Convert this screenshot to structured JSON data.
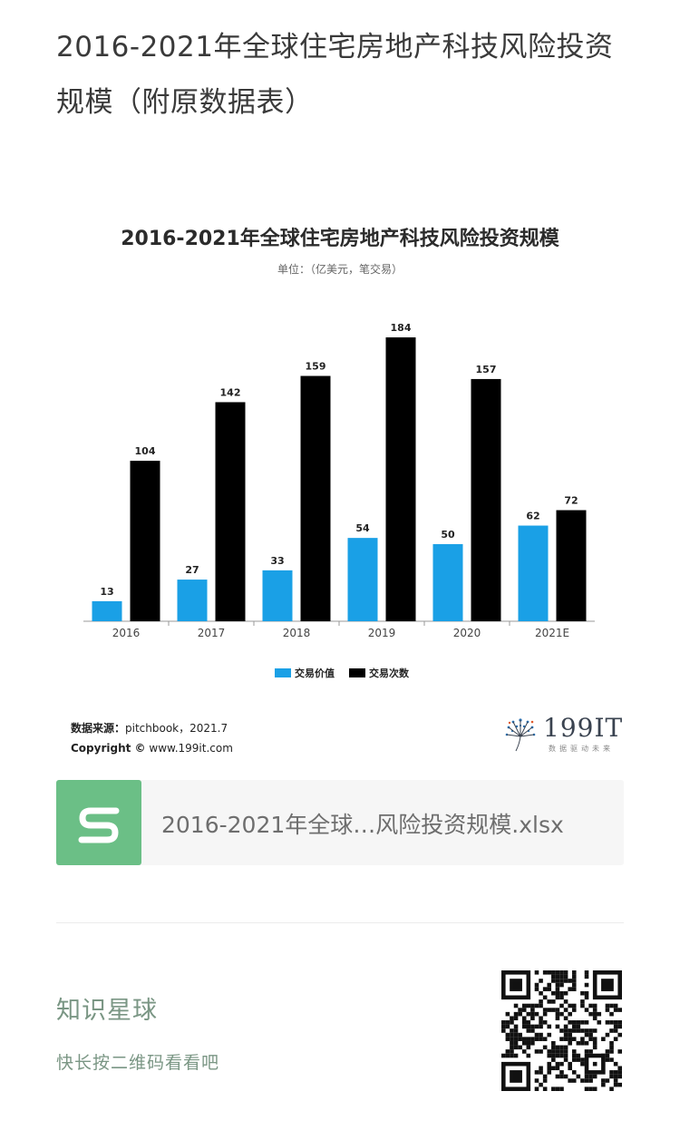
{
  "page": {
    "title": "2016-2021年全球住宅房地产科技风险投资规模（附原数据表）"
  },
  "chart_data": {
    "type": "bar",
    "title": "2016-2021年全球住宅房地产科技风险投资规模",
    "subtitle": "单位：（亿美元，笔交易）",
    "categories": [
      "2016",
      "2017",
      "2018",
      "2019",
      "2020",
      "2021E"
    ],
    "series": [
      {
        "name": "交易价值",
        "color": "#1aa0e6",
        "values": [
          13,
          27,
          33,
          54,
          50,
          62
        ]
      },
      {
        "name": "交易次数",
        "color": "#000000",
        "values": [
          104,
          142,
          159,
          184,
          157,
          72
        ]
      }
    ],
    "ylim": [
      0,
      184
    ],
    "grid": false,
    "legend": "bottom-center"
  },
  "source": {
    "label": "数据来源：",
    "text": "pitchbook，2021.7",
    "copyright_label": "Copyright ©",
    "copyright_text": "www.199it.com"
  },
  "logo": {
    "text": "199IT",
    "tagline": "数据驱动未来"
  },
  "attachment": {
    "icon": "spreadsheet-s-icon",
    "file_name": "2016-2021年全球…风险投资规模.xlsx",
    "color": "#6bbf86"
  },
  "planet": {
    "title": "知识星球",
    "hint": "快长按二维码看看吧"
  }
}
